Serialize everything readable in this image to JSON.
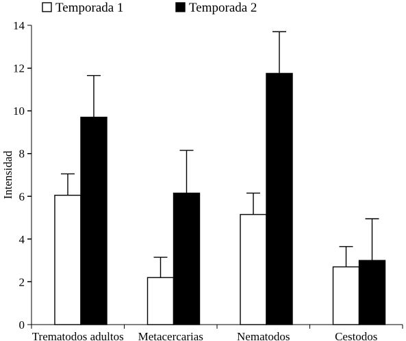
{
  "chart_data": {
    "type": "bar",
    "title": "",
    "xlabel": "",
    "ylabel": "Intensidad",
    "ylim": [
      0,
      14
    ],
    "yticks": [
      "0",
      "2",
      "4",
      "6",
      "8",
      "10",
      "12",
      "14"
    ],
    "grid": false,
    "legend_position": "top-left",
    "categories": [
      "Trematodos adultos",
      "Metacercarias",
      "Nematodos",
      "Cestodos"
    ],
    "series": [
      {
        "name": "Temporada 1",
        "color": "#ffffff",
        "values": [
          6.05,
          2.2,
          5.15,
          2.7
        ],
        "error": [
          1.0,
          0.95,
          1.0,
          0.95
        ]
      },
      {
        "name": "Temporada 2",
        "color": "#000000",
        "values": [
          9.7,
          6.15,
          11.75,
          3.0
        ],
        "error": [
          1.95,
          2.0,
          1.95,
          1.95
        ]
      }
    ]
  }
}
